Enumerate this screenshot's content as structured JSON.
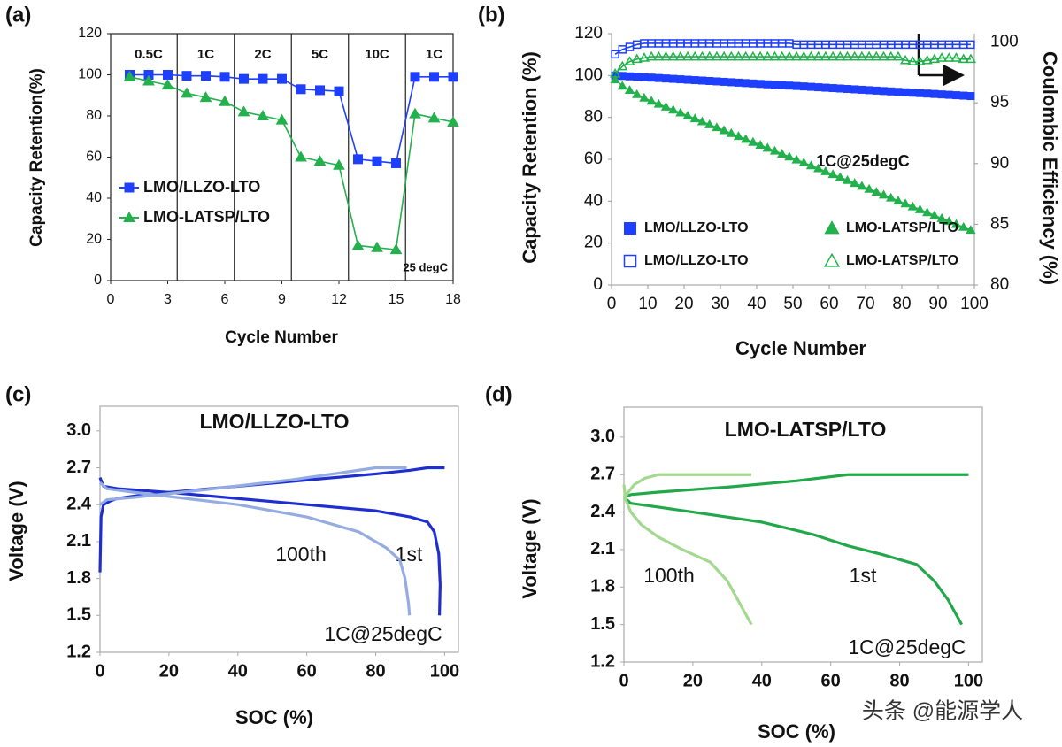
{
  "chart_data": [
    {
      "type": "line",
      "panel_label": "(a)",
      "xlabel": "Cycle Number",
      "ylabel": "Capacity Retention(%)",
      "x": [
        1,
        2,
        3,
        4,
        5,
        6,
        7,
        8,
        9,
        10,
        11,
        12,
        13,
        14,
        15,
        16,
        17,
        18
      ],
      "xlim": [
        0,
        18
      ],
      "xticks": [
        0,
        3,
        6,
        9,
        12,
        15,
        18
      ],
      "ylim": [
        0,
        120
      ],
      "yticks": [
        0,
        20,
        40,
        60,
        80,
        100,
        120
      ],
      "rate_labels": [
        "0.5C",
        "1C",
        "2C",
        "5C",
        "10C",
        "1C"
      ],
      "annotation": "25 degC",
      "series": [
        {
          "name": "LMO/LLZO-LTO",
          "color": "#1f3fff",
          "marker": "square",
          "filled": true,
          "values": [
            100,
            100,
            100,
            99.5,
            99.5,
            99,
            98,
            98,
            98,
            93,
            92.5,
            92,
            59,
            58,
            57,
            99,
            99,
            99
          ]
        },
        {
          "name": "LMO-LATSP/LTO",
          "color": "#22b14c",
          "marker": "triangle",
          "filled": true,
          "values": [
            99,
            97,
            95,
            91,
            89,
            87,
            82,
            80,
            78,
            60,
            58,
            56,
            17,
            16,
            15,
            81,
            79,
            77
          ]
        }
      ]
    },
    {
      "type": "line",
      "panel_label": "(b)",
      "xlabel": "Cycle Number",
      "ylabel": "Capacity Retention (%)",
      "y2label": "Coulombic Efficiency  (%)",
      "x": [
        1,
        3,
        5,
        7,
        9,
        11,
        13,
        15,
        17,
        19,
        21,
        23,
        25,
        27,
        29,
        31,
        33,
        35,
        37,
        39,
        41,
        43,
        45,
        47,
        49,
        51,
        53,
        55,
        57,
        59,
        61,
        63,
        65,
        67,
        69,
        71,
        73,
        75,
        77,
        79,
        81,
        83,
        85,
        87,
        89,
        91,
        93,
        95,
        97,
        99
      ],
      "xlim": [
        0,
        100
      ],
      "xticks": [
        0,
        10,
        20,
        30,
        40,
        50,
        60,
        70,
        80,
        90,
        100
      ],
      "ylim": [
        0,
        120
      ],
      "yticks": [
        0,
        20,
        40,
        60,
        80,
        100,
        120
      ],
      "y2lim": [
        80,
        100.7
      ],
      "y2ticks": [
        80,
        85,
        90,
        95,
        100
      ],
      "annotation": "1C@25degC",
      "series": [
        {
          "name": "LMO/LLZO-LTO",
          "color": "#1f3fff",
          "marker": "square",
          "filled": true,
          "values": [
            100,
            99.8,
            99.6,
            99.4,
            99.2,
            99,
            98.8,
            98.6,
            98.4,
            98.2,
            98,
            97.8,
            97.6,
            97.4,
            97.2,
            97,
            96.8,
            96.6,
            96.4,
            96.2,
            96,
            95.8,
            95.6,
            95.4,
            95.2,
            95,
            94.8,
            94.6,
            94.4,
            94.2,
            94,
            93.8,
            93.6,
            93.4,
            93.2,
            93,
            92.8,
            92.6,
            92.4,
            92.2,
            92,
            91.8,
            91.6,
            91.4,
            91.2,
            91,
            90.8,
            90.6,
            90.4,
            90.2
          ]
        },
        {
          "name": "LMO-LATSP/LTO",
          "color": "#22b14c",
          "marker": "triangle",
          "filled": true,
          "values": [
            98,
            95,
            93,
            91,
            89.3,
            87.8,
            86.4,
            85,
            83.6,
            82.2,
            80.8,
            79.4,
            78,
            76.6,
            75.2,
            73.8,
            72.4,
            71,
            69.6,
            68.2,
            66.8,
            65.4,
            64,
            62.6,
            61.2,
            59.8,
            58.4,
            57,
            55.6,
            54.2,
            52.8,
            51.4,
            50,
            48.6,
            47.2,
            45.8,
            44.4,
            43,
            41.6,
            40.2,
            38.8,
            37.4,
            36,
            34.6,
            33.2,
            31.8,
            30.4,
            29,
            27.6,
            26.2
          ]
        },
        {
          "name": "LMO/LLZO-LTO",
          "color": "#1f3fff",
          "marker": "square",
          "filled": false,
          "axis": "y2",
          "values": [
            99,
            99.4,
            99.6,
            99.8,
            99.9,
            99.9,
            99.9,
            99.9,
            99.9,
            99.9,
            99.9,
            99.9,
            99.9,
            99.9,
            99.9,
            99.9,
            99.9,
            99.9,
            99.9,
            99.9,
            99.9,
            99.9,
            99.9,
            99.9,
            99.9,
            99.8,
            99.8,
            99.8,
            99.8,
            99.8,
            99.8,
            99.8,
            99.8,
            99.8,
            99.8,
            99.8,
            99.8,
            99.8,
            99.8,
            99.8,
            99.8,
            99.8,
            99.8,
            99.8,
            99.8,
            99.8,
            99.8,
            99.8,
            99.8,
            99.8
          ]
        },
        {
          "name": "LMO-LATSP/LTO",
          "color": "#22b14c",
          "marker": "triangle",
          "filled": false,
          "axis": "y2",
          "values": [
            97.4,
            98,
            98.4,
            98.6,
            98.7,
            98.8,
            98.8,
            98.8,
            98.8,
            98.8,
            98.8,
            98.8,
            98.8,
            98.8,
            98.8,
            98.8,
            98.8,
            98.8,
            98.8,
            98.8,
            98.8,
            98.8,
            98.8,
            98.8,
            98.8,
            98.8,
            98.8,
            98.8,
            98.8,
            98.8,
            98.8,
            98.8,
            98.8,
            98.8,
            98.8,
            98.8,
            98.8,
            98.8,
            98.8,
            98.8,
            98.5,
            98.4,
            98.4,
            98.5,
            98.6,
            98.7,
            98.7,
            98.7,
            98.6,
            98.6
          ]
        }
      ]
    },
    {
      "type": "line",
      "panel_label": "(c)",
      "title": "LMO/LLZO-LTO",
      "xlabel": "SOC (%)",
      "ylabel": "Voltage (V)",
      "xlim": [
        0,
        104
      ],
      "xticks": [
        0,
        20,
        40,
        60,
        80,
        100
      ],
      "ylim": [
        1.2,
        3.2
      ],
      "yticks": [
        1.2,
        1.5,
        1.8,
        2.1,
        2.4,
        2.7,
        {
          "value": 3,
          "label": "3.0"
        }
      ],
      "annotations": [
        "100th",
        "1st",
        "1C@25degC"
      ],
      "series": [
        {
          "color": "#1f2fcf",
          "x": [
            0,
            0.3,
            1,
            3,
            5,
            10,
            20,
            40,
            60,
            80,
            90,
            95,
            100
          ],
          "values": [
            1.85,
            2.3,
            2.4,
            2.43,
            2.45,
            2.47,
            2.5,
            2.55,
            2.6,
            2.65,
            2.68,
            2.7,
            2.7
          ]
        },
        {
          "color": "#1f2fcf",
          "x": [
            0,
            1,
            5,
            10,
            20,
            40,
            60,
            80,
            90,
            95,
            97,
            98.3,
            98.7,
            98.5
          ],
          "values": [
            2.62,
            2.55,
            2.53,
            2.52,
            2.5,
            2.45,
            2.4,
            2.35,
            2.3,
            2.26,
            2.18,
            2,
            1.75,
            1.5
          ]
        },
        {
          "color": "#94ace2",
          "x": [
            0,
            2,
            10,
            30,
            55,
            80,
            89
          ],
          "values": [
            2.4,
            2.44,
            2.46,
            2.52,
            2.6,
            2.7,
            2.7
          ]
        },
        {
          "color": "#94ace2",
          "x": [
            0,
            2,
            10,
            25,
            40,
            60,
            75,
            83,
            87,
            88.5,
            89.5,
            89.8
          ],
          "values": [
            2.58,
            2.53,
            2.5,
            2.45,
            2.4,
            2.3,
            2.18,
            2.05,
            1.95,
            1.8,
            1.6,
            1.5
          ]
        }
      ]
    },
    {
      "type": "line",
      "panel_label": "(d)",
      "title": "LMO-LATSP/LTO",
      "xlabel": "SOC (%)",
      "ylabel": "Voltage (V)",
      "xlim": [
        0,
        104
      ],
      "xticks": [
        0,
        20,
        40,
        60,
        80,
        100
      ],
      "ylim": [
        1.2,
        3.24
      ],
      "yticks": [
        1.2,
        1.5,
        1.8,
        2.1,
        2.4,
        2.7,
        {
          "value": 3,
          "label": "3.0"
        }
      ],
      "annotations": [
        "100th",
        "1st",
        "1C@25degC"
      ],
      "watermark": "头条 @能源学人",
      "series": [
        {
          "color": "#22a84a",
          "x": [
            0,
            2,
            10,
            30,
            50,
            65,
            100
          ],
          "values": [
            2.52,
            2.54,
            2.56,
            2.6,
            2.65,
            2.7,
            2.7
          ]
        },
        {
          "color": "#22a84a",
          "x": [
            0,
            2,
            10,
            20,
            40,
            55,
            65,
            75,
            85,
            90,
            94,
            98
          ],
          "values": [
            2.52,
            2.47,
            2.44,
            2.4,
            2.32,
            2.22,
            2.13,
            2.06,
            1.98,
            1.85,
            1.7,
            1.5
          ]
        },
        {
          "color": "#a3d98e",
          "x": [
            0,
            1,
            3,
            6,
            10,
            37
          ],
          "values": [
            2.5,
            2.55,
            2.62,
            2.67,
            2.7,
            2.7
          ]
        },
        {
          "color": "#a3d98e",
          "x": [
            0,
            0.5,
            2,
            5,
            10,
            17,
            25,
            30,
            34,
            37
          ],
          "values": [
            2.62,
            2.5,
            2.4,
            2.3,
            2.2,
            2.1,
            2,
            1.85,
            1.65,
            1.5
          ]
        }
      ]
    }
  ]
}
